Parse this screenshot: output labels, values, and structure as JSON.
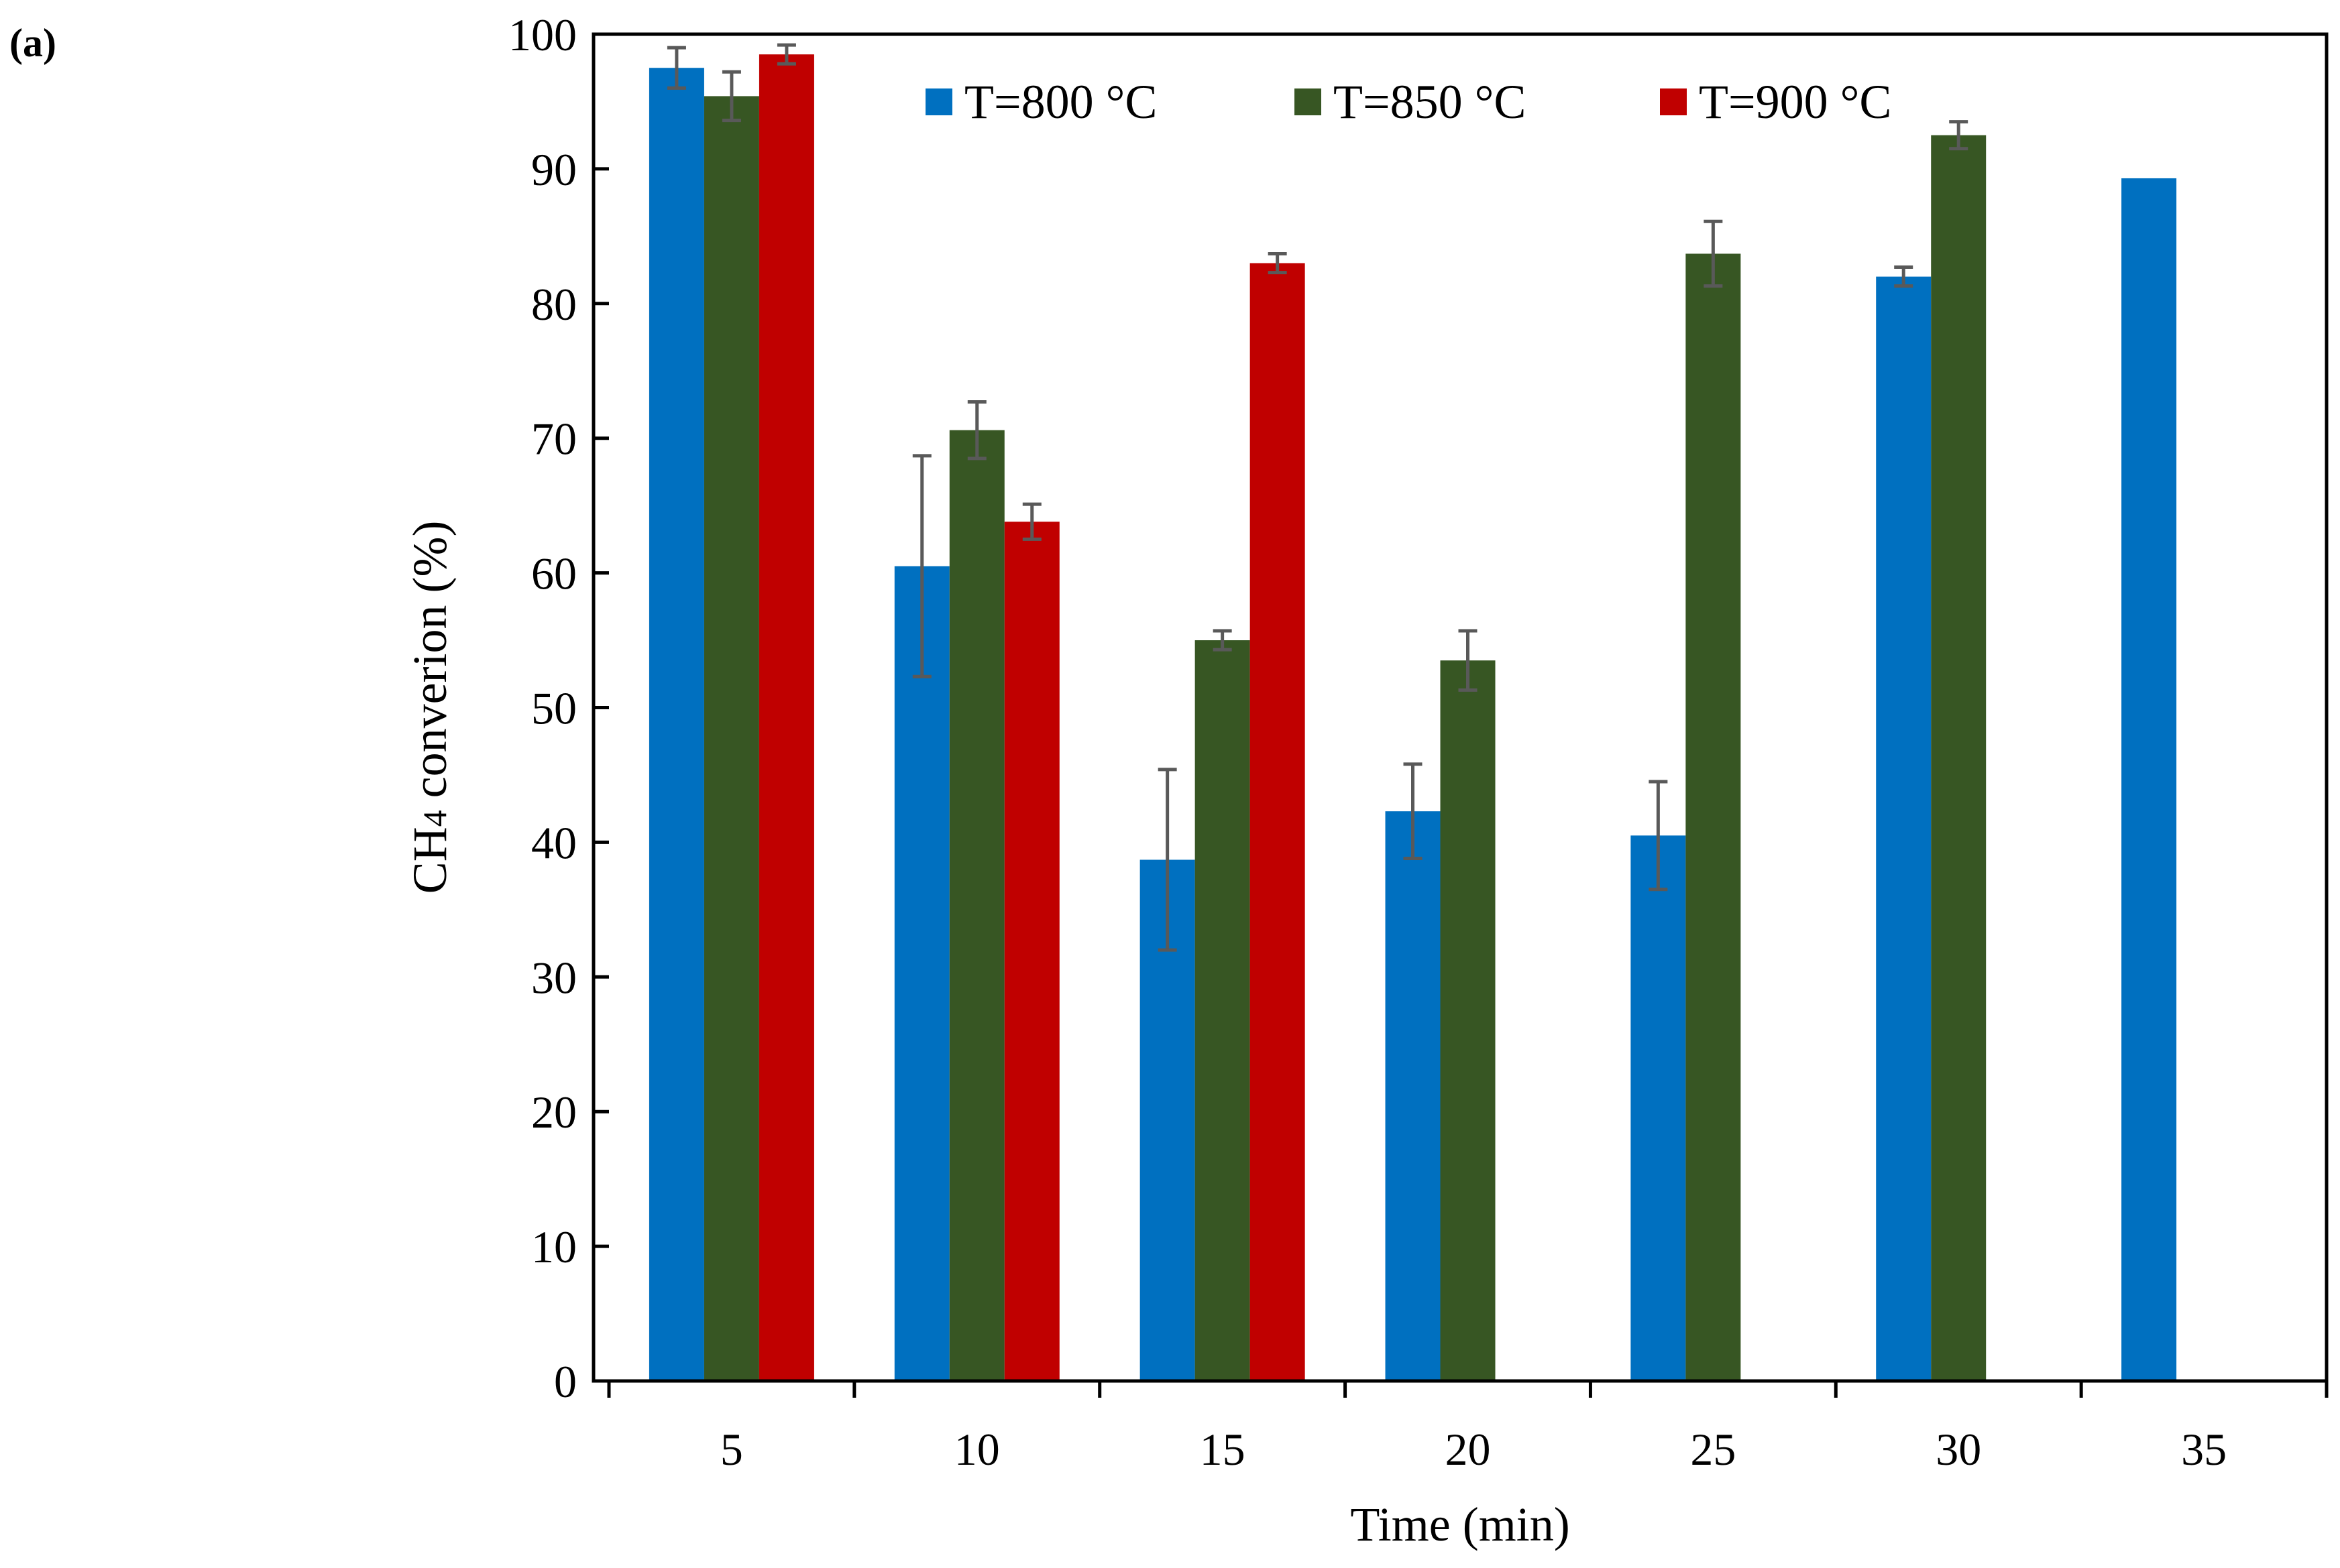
{
  "panel_label": "(a)",
  "chart_data": {
    "type": "bar",
    "title": "",
    "panel": "(a)",
    "xlabel": "Time (min)",
    "ylabel_main": "CH",
    "ylabel_sub": "4",
    "ylabel_rest": " converion (%)",
    "ylim": [
      0,
      100
    ],
    "ytick_step": 10,
    "grid": false,
    "legend_position": "top",
    "categories": [
      "5",
      "10",
      "15",
      "20",
      "25",
      "30",
      "35"
    ],
    "series": [
      {
        "name": "T=800 °C",
        "color": "#0070C0",
        "values": [
          97.5,
          60.5,
          38.7,
          42.3,
          40.5,
          82.0,
          89.3
        ],
        "errors": [
          1.5,
          8.2,
          6.7,
          3.5,
          4.0,
          0.7,
          0.0
        ]
      },
      {
        "name": "T=850 °C",
        "color": "#375623",
        "values": [
          95.4,
          70.6,
          55.0,
          53.5,
          83.7,
          92.5,
          null
        ],
        "errors": [
          1.8,
          2.1,
          0.7,
          2.2,
          2.4,
          1.0,
          null
        ]
      },
      {
        "name": "T=900 °C",
        "color": "#C00000",
        "values": [
          98.5,
          63.8,
          83.0,
          null,
          null,
          null,
          null
        ],
        "errors": [
          0.7,
          1.3,
          0.7,
          null,
          null,
          null,
          null
        ]
      }
    ]
  }
}
